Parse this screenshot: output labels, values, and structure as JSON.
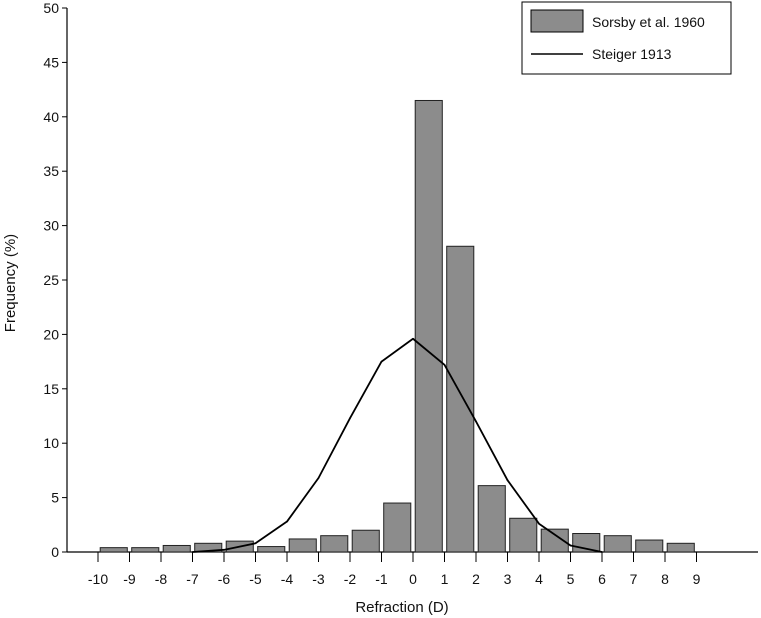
{
  "chart_data": {
    "type": "bar",
    "xlabel": "Refraction (D)",
    "ylabel": "Frequency (%)",
    "ylim": [
      0,
      50
    ],
    "xlim": [
      -10.5,
      10.5
    ],
    "yticks": [
      0,
      5,
      10,
      15,
      20,
      25,
      30,
      35,
      40,
      45,
      50
    ],
    "xticks": [
      -10,
      -9,
      -8,
      -7,
      -6,
      -5,
      -4,
      -3,
      -2,
      -1,
      0,
      1,
      2,
      3,
      4,
      5,
      6,
      7,
      8,
      9
    ],
    "grid": false,
    "legend_position": "top-right",
    "series": [
      {
        "name": "Sorsby et al. 1960",
        "type": "bar",
        "color": "#8c8c8c",
        "x": [
          -9.5,
          -8.5,
          -7.5,
          -6.5,
          -5.5,
          -4.5,
          -3.5,
          -2.5,
          -1.5,
          -0.5,
          0.5,
          1.5,
          2.5,
          3.5,
          4.5,
          5.5,
          6.5,
          7.5,
          8.5
        ],
        "values": [
          0.4,
          0.4,
          0.6,
          0.8,
          1.0,
          0.5,
          1.2,
          1.5,
          2.0,
          4.5,
          41.5,
          28.1,
          6.1,
          3.1,
          2.1,
          1.7,
          1.5,
          1.1,
          0.8
        ]
      },
      {
        "name": "Steiger 1913",
        "type": "line",
        "color": "#000000",
        "x": [
          -7,
          -6,
          -5,
          -4,
          -3,
          -2,
          -1,
          0,
          1,
          2,
          3,
          4,
          5,
          6
        ],
        "values": [
          0,
          0.2,
          0.8,
          2.8,
          6.8,
          12.3,
          17.5,
          19.6,
          17.2,
          12.0,
          6.6,
          2.6,
          0.6,
          0
        ]
      }
    ]
  }
}
